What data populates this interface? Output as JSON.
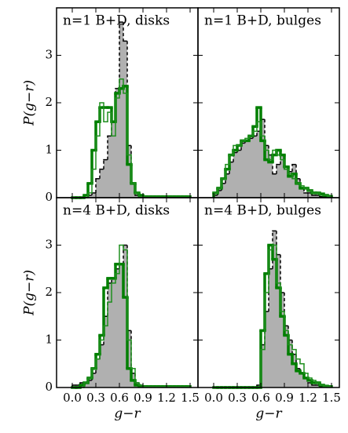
{
  "chart_data": [
    {
      "type": "histogram",
      "title": "n=1 B+D, disks",
      "ylabel": "P(g−r)",
      "bins": [
        0,
        0.05,
        0.1,
        0.15,
        0.2,
        0.25,
        0.3,
        0.35,
        0.4,
        0.45,
        0.5,
        0.55,
        0.6,
        0.65,
        0.7,
        0.75,
        0.8,
        0.85,
        0.9,
        0.95,
        1,
        1.05,
        1.1,
        1.15,
        1.2,
        1.25,
        1.3,
        1.35,
        1.4,
        1.45,
        1.5
      ],
      "series": [
        {
          "color": "#b0b0b0",
          "style": "filled-dashed",
          "values": [
            0,
            0,
            0,
            0,
            0.05,
            0.1,
            0.4,
            0.6,
            0.8,
            1.3,
            1.6,
            2.3,
            3.7,
            3.3,
            1.1,
            0.3,
            0.05,
            0.02,
            0.02,
            0.02,
            0.02,
            0.02,
            0.02,
            0.02,
            0.02,
            0.02,
            0.02,
            0.02,
            0.02,
            0.02
          ]
        },
        {
          "color": "#007f00",
          "linewidth": 3.5,
          "values": [
            0,
            0,
            0,
            0.05,
            0.3,
            1.0,
            1.6,
            1.9,
            1.9,
            1.9,
            1.6,
            2.2,
            2.3,
            2.35,
            0.7,
            0.3,
            0.1,
            0.05,
            0.02,
            0.02,
            0.02,
            0.02,
            0.02,
            0.02,
            0.02,
            0.02,
            0.02,
            0.02,
            0.02,
            0.02
          ]
        },
        {
          "color": "#1f8f1f",
          "linewidth": 1.5,
          "values": [
            0,
            0,
            0,
            0,
            0.1,
            0.6,
            1.3,
            2.0,
            1.6,
            1.8,
            1.3,
            2.1,
            2.5,
            2.2,
            0.9,
            0.3,
            0.1,
            0.02,
            0.02,
            0.02,
            0.02,
            0.02,
            0.02,
            0.02,
            0.02,
            0.02,
            0.02,
            0.02,
            0.02,
            0.02
          ]
        }
      ],
      "xlim": [
        -0.2,
        1.6
      ],
      "ylim": [
        0,
        4
      ],
      "xticks": [
        {
          "value": 0,
          "label": "0.0"
        },
        0.3,
        0.6,
        0.9,
        1.2,
        1.5
      ],
      "yticks": [
        0,
        1,
        2,
        3
      ],
      "show_xticklabels": false,
      "show_yticklabels": true
    },
    {
      "type": "histogram",
      "title": "n=1 B+D, bulges",
      "bins": [
        0,
        0.05,
        0.1,
        0.15,
        0.2,
        0.25,
        0.3,
        0.35,
        0.4,
        0.45,
        0.5,
        0.55,
        0.6,
        0.65,
        0.7,
        0.75,
        0.8,
        0.85,
        0.9,
        0.95,
        1,
        1.05,
        1.1,
        1.15,
        1.2,
        1.25,
        1.3,
        1.35,
        1.4,
        1.45,
        1.5
      ],
      "series": [
        {
          "color": "#b0b0b0",
          "style": "filled-dashed",
          "values": [
            0.05,
            0.15,
            0.3,
            0.5,
            0.75,
            0.95,
            1.0,
            1.15,
            1.2,
            1.25,
            1.3,
            1.4,
            1.65,
            1.1,
            0.9,
            0.5,
            0.7,
            0.9,
            0.6,
            0.55,
            0.7,
            0.4,
            0.2,
            0.1,
            0.1,
            0.05,
            0.05,
            0.02,
            0.02,
            0.02
          ]
        },
        {
          "color": "#007f00",
          "linewidth": 3.5,
          "values": [
            0.1,
            0.2,
            0.4,
            0.6,
            0.9,
            1.0,
            1.1,
            1.2,
            1.2,
            1.3,
            1.5,
            1.9,
            1.2,
            0.8,
            0.75,
            0.9,
            1.0,
            0.9,
            0.65,
            0.45,
            0.5,
            0.3,
            0.2,
            0.2,
            0.15,
            0.1,
            0.1,
            0.08,
            0.05,
            0.03
          ]
        },
        {
          "color": "#1f8f1f",
          "linewidth": 1.5,
          "values": [
            0.1,
            0.2,
            0.4,
            0.7,
            0.9,
            1.1,
            1.1,
            1.2,
            1.25,
            1.3,
            1.4,
            1.6,
            1.3,
            1.0,
            0.8,
            1.0,
            0.9,
            0.8,
            0.6,
            0.5,
            0.4,
            0.3,
            0.25,
            0.2,
            0.15,
            0.1,
            0.1,
            0.05,
            0.05,
            0.03
          ]
        }
      ],
      "xlim": [
        -0.2,
        1.6
      ],
      "ylim": [
        0,
        4
      ],
      "xticks": [
        {
          "value": 0,
          "label": "0.0"
        },
        0.3,
        0.6,
        0.9,
        1.2,
        1.5
      ],
      "yticks": [
        0,
        1,
        2,
        3
      ],
      "show_xticklabels": false,
      "show_yticklabels": false
    },
    {
      "type": "histogram",
      "title": "n=4 B+D, disks",
      "ylabel": "P(g−r)",
      "xlabel": "g−r",
      "bins": [
        0,
        0.05,
        0.1,
        0.15,
        0.2,
        0.25,
        0.3,
        0.35,
        0.4,
        0.45,
        0.5,
        0.55,
        0.6,
        0.65,
        0.7,
        0.75,
        0.8,
        0.85,
        0.9,
        0.95,
        1,
        1.05,
        1.1,
        1.15,
        1.2,
        1.25,
        1.3,
        1.35,
        1.4,
        1.45,
        1.5
      ],
      "series": [
        {
          "color": "#b0b0b0",
          "style": "filled-dashed",
          "values": [
            0.05,
            0.05,
            0.1,
            0.1,
            0.15,
            0.3,
            0.6,
            0.9,
            1.5,
            2.2,
            2.3,
            2.5,
            2.6,
            3.0,
            1.2,
            0.3,
            0.1,
            0.05,
            0.02,
            0.02,
            0.02,
            0.02,
            0.02,
            0.02,
            0.02,
            0.02,
            0.02,
            0.02,
            0.02,
            0.02
          ]
        },
        {
          "color": "#007f00",
          "linewidth": 3.5,
          "values": [
            0,
            0,
            0.05,
            0.1,
            0.2,
            0.4,
            0.7,
            1.1,
            2.1,
            2.3,
            2.3,
            2.6,
            2.6,
            1.9,
            0.4,
            0.15,
            0.05,
            0.02,
            0.02,
            0.02,
            0.02,
            0.02,
            0.02,
            0.02,
            0.02,
            0.02,
            0.02,
            0.02,
            0.02,
            0.02
          ]
        },
        {
          "color": "#1f8f1f",
          "linewidth": 1.5,
          "values": [
            0,
            0,
            0,
            0.1,
            0.2,
            0.4,
            0.6,
            1.0,
            1.3,
            1.8,
            2.2,
            2.4,
            3.0,
            2.9,
            1.0,
            0.4,
            0.1,
            0.05,
            0.02,
            0.02,
            0.02,
            0.02,
            0.02,
            0.02,
            0.02,
            0.02,
            0.02,
            0.02,
            0.02,
            0.02
          ]
        }
      ],
      "xlim": [
        -0.2,
        1.6
      ],
      "ylim": [
        0,
        4
      ],
      "xticks": [
        {
          "value": 0,
          "label": "0.0"
        },
        0.3,
        0.6,
        0.9,
        1.2,
        1.5
      ],
      "yticks": [
        0,
        1,
        2,
        3
      ],
      "show_xticklabels": true,
      "show_yticklabels": true
    },
    {
      "type": "histogram",
      "title": "n=4 B+D, bulges",
      "xlabel": "g−r",
      "bins": [
        0,
        0.05,
        0.1,
        0.15,
        0.2,
        0.25,
        0.3,
        0.35,
        0.4,
        0.45,
        0.5,
        0.55,
        0.6,
        0.65,
        0.7,
        0.75,
        0.8,
        0.85,
        0.9,
        0.95,
        1,
        1.05,
        1.1,
        1.15,
        1.2,
        1.25,
        1.3,
        1.35,
        1.4,
        1.45,
        1.5
      ],
      "series": [
        {
          "color": "#b0b0b0",
          "style": "filled-dashed",
          "values": [
            0,
            0,
            0,
            0,
            0,
            0,
            0,
            0,
            0,
            0,
            0,
            0.05,
            0.9,
            1.6,
            2.5,
            3.3,
            2.8,
            2.0,
            1.3,
            1.0,
            0.7,
            0.4,
            0.3,
            0.2,
            0.1,
            0.05,
            0.05,
            0.02,
            0.02,
            0.02
          ]
        },
        {
          "color": "#007f00",
          "linewidth": 3.5,
          "values": [
            0,
            0,
            0,
            0,
            0,
            0,
            0,
            0,
            0,
            0,
            0,
            0,
            1.2,
            2.4,
            3.0,
            2.7,
            2.1,
            1.5,
            1.1,
            0.7,
            0.5,
            0.35,
            0.3,
            0.2,
            0.15,
            0.1,
            0.1,
            0.05,
            0.03,
            0.02
          ]
        },
        {
          "color": "#1f8f1f",
          "linewidth": 1.5,
          "values": [
            0,
            0,
            0,
            0,
            0,
            0,
            0,
            0,
            0,
            0,
            0,
            0,
            0.8,
            2.0,
            2.9,
            3.0,
            2.2,
            1.6,
            1.2,
            0.9,
            0.8,
            0.6,
            0.5,
            0.3,
            0.2,
            0.15,
            0.1,
            0.05,
            0.03,
            0.02
          ]
        }
      ],
      "xlim": [
        -0.2,
        1.6
      ],
      "ylim": [
        0,
        4
      ],
      "xticks": [
        {
          "value": 0,
          "label": "0.0"
        },
        0.3,
        0.6,
        0.9,
        1.2,
        1.5
      ],
      "yticks": [
        0,
        1,
        2,
        3
      ],
      "show_xticklabels": true,
      "show_yticklabels": false
    }
  ]
}
